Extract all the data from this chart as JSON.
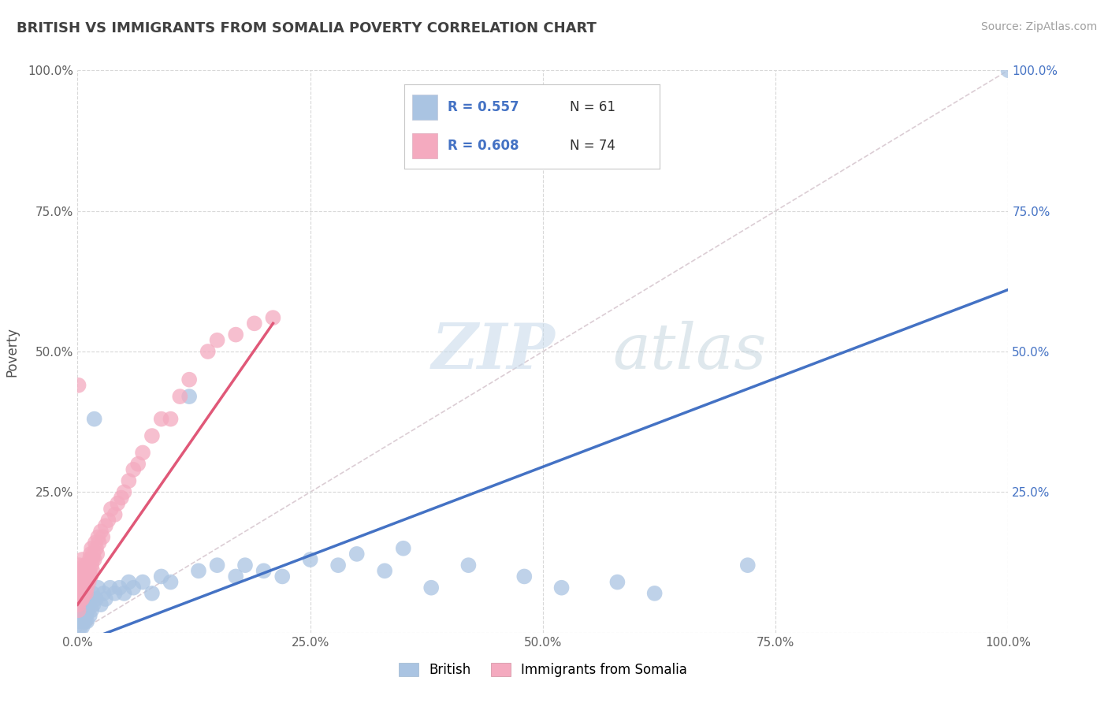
{
  "title": "BRITISH VS IMMIGRANTS FROM SOMALIA POVERTY CORRELATION CHART",
  "source_text": "Source: ZipAtlas.com",
  "ylabel": "Poverty",
  "watermark": "ZIPatlas",
  "xlim": [
    0,
    1
  ],
  "ylim": [
    0,
    1
  ],
  "x_ticks": [
    0.0,
    0.25,
    0.5,
    0.75,
    1.0
  ],
  "x_tick_labels": [
    "0.0%",
    "25.0%",
    "50.0%",
    "75.0%",
    "100.0%"
  ],
  "y_ticks": [
    0.0,
    0.25,
    0.5,
    0.75,
    1.0
  ],
  "y_tick_labels": [
    "",
    "25.0%",
    "50.0%",
    "75.0%",
    "100.0%"
  ],
  "y_right_tick_labels": [
    "",
    "25.0%",
    "50.0%",
    "75.0%",
    "100.0%"
  ],
  "british_color": "#aac4e2",
  "somalia_color": "#f4aabf",
  "british_line_color": "#4472c4",
  "somalia_line_color": "#e05878",
  "british_R": 0.557,
  "british_N": 61,
  "somalia_R": 0.608,
  "somalia_N": 74,
  "legend_label_british": "British",
  "legend_label_somalia": "Immigrants from Somalia",
  "title_color": "#404040",
  "grid_color": "#d8d8d8",
  "background_color": "#ffffff",
  "british_x": [
    0.002,
    0.003,
    0.003,
    0.004,
    0.004,
    0.005,
    0.005,
    0.005,
    0.006,
    0.006,
    0.007,
    0.007,
    0.008,
    0.008,
    0.009,
    0.009,
    0.01,
    0.01,
    0.011,
    0.012,
    0.013,
    0.014,
    0.015,
    0.016,
    0.017,
    0.018,
    0.02,
    0.022,
    0.025,
    0.028,
    0.03,
    0.035,
    0.04,
    0.045,
    0.05,
    0.055,
    0.06,
    0.07,
    0.08,
    0.09,
    0.1,
    0.12,
    0.13,
    0.15,
    0.17,
    0.18,
    0.2,
    0.22,
    0.25,
    0.28,
    0.3,
    0.33,
    0.35,
    0.38,
    0.42,
    0.48,
    0.52,
    0.58,
    0.62,
    0.72,
    1.0
  ],
  "british_y": [
    0.02,
    0.03,
    0.01,
    0.04,
    0.02,
    0.03,
    0.05,
    0.01,
    0.04,
    0.02,
    0.05,
    0.03,
    0.04,
    0.02,
    0.05,
    0.03,
    0.06,
    0.02,
    0.04,
    0.05,
    0.03,
    0.06,
    0.04,
    0.07,
    0.05,
    0.38,
    0.06,
    0.08,
    0.05,
    0.07,
    0.06,
    0.08,
    0.07,
    0.08,
    0.07,
    0.09,
    0.08,
    0.09,
    0.07,
    0.1,
    0.09,
    0.42,
    0.11,
    0.12,
    0.1,
    0.12,
    0.11,
    0.1,
    0.13,
    0.12,
    0.14,
    0.11,
    0.15,
    0.08,
    0.12,
    0.1,
    0.08,
    0.09,
    0.07,
    0.12,
    1.0
  ],
  "somalia_x": [
    0.001,
    0.001,
    0.002,
    0.002,
    0.002,
    0.003,
    0.003,
    0.003,
    0.003,
    0.004,
    0.004,
    0.004,
    0.005,
    0.005,
    0.005,
    0.005,
    0.006,
    0.006,
    0.006,
    0.007,
    0.007,
    0.007,
    0.008,
    0.008,
    0.008,
    0.009,
    0.009,
    0.01,
    0.01,
    0.01,
    0.011,
    0.011,
    0.012,
    0.012,
    0.013,
    0.013,
    0.014,
    0.014,
    0.015,
    0.015,
    0.016,
    0.016,
    0.017,
    0.018,
    0.019,
    0.02,
    0.021,
    0.022,
    0.023,
    0.025,
    0.027,
    0.03,
    0.033,
    0.036,
    0.04,
    0.043,
    0.047,
    0.05,
    0.055,
    0.06,
    0.065,
    0.07,
    0.08,
    0.09,
    0.1,
    0.11,
    0.12,
    0.14,
    0.15,
    0.17,
    0.19,
    0.21,
    0.001,
    0.001
  ],
  "somalia_y": [
    0.44,
    0.08,
    0.1,
    0.07,
    0.12,
    0.09,
    0.06,
    0.08,
    0.11,
    0.07,
    0.09,
    0.06,
    0.1,
    0.08,
    0.06,
    0.13,
    0.09,
    0.07,
    0.11,
    0.08,
    0.1,
    0.07,
    0.09,
    0.12,
    0.08,
    0.1,
    0.07,
    0.11,
    0.09,
    0.08,
    0.12,
    0.1,
    0.11,
    0.09,
    0.13,
    0.11,
    0.14,
    0.1,
    0.12,
    0.15,
    0.13,
    0.11,
    0.14,
    0.13,
    0.16,
    0.15,
    0.14,
    0.17,
    0.16,
    0.18,
    0.17,
    0.19,
    0.2,
    0.22,
    0.21,
    0.23,
    0.24,
    0.25,
    0.27,
    0.29,
    0.3,
    0.32,
    0.35,
    0.38,
    0.38,
    0.42,
    0.45,
    0.5,
    0.52,
    0.53,
    0.55,
    0.56,
    0.04,
    0.05
  ]
}
